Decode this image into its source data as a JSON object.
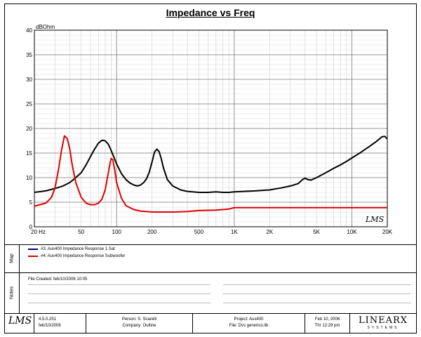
{
  "chart_data": {
    "type": "line",
    "title": "Impedance vs Freq",
    "ylabel": "dBOhm",
    "xlabel": "",
    "x_scale": "log",
    "xlim": [
      20,
      20000
    ],
    "ylim": [
      0,
      40
    ],
    "grid": true,
    "x_ticks": [
      "20 Hz",
      "50",
      "100",
      "200",
      "500",
      "1K",
      "2K",
      "5K",
      "10K",
      "20K"
    ],
    "x_tick_values": [
      20,
      50,
      100,
      200,
      500,
      1000,
      2000,
      5000,
      10000,
      20000
    ],
    "y_ticks": [
      "40",
      "35",
      "30",
      "25",
      "20",
      "15",
      "10",
      "5",
      "0"
    ],
    "y_tick_values": [
      40,
      35,
      30,
      25,
      20,
      15,
      10,
      5,
      0
    ],
    "series": [
      {
        "name": "#3: Aus400 Impedance Response 1 Sat",
        "color": "#000000",
        "points": [
          [
            20,
            7.0
          ],
          [
            25,
            7.3
          ],
          [
            30,
            7.8
          ],
          [
            35,
            8.3
          ],
          [
            40,
            9.0
          ],
          [
            45,
            10.0
          ],
          [
            50,
            11.0
          ],
          [
            55,
            12.6
          ],
          [
            60,
            14.3
          ],
          [
            65,
            15.8
          ],
          [
            70,
            17.0
          ],
          [
            75,
            17.6
          ],
          [
            80,
            17.5
          ],
          [
            85,
            16.8
          ],
          [
            90,
            15.5
          ],
          [
            100,
            12.8
          ],
          [
            110,
            10.8
          ],
          [
            120,
            9.6
          ],
          [
            130,
            8.9
          ],
          [
            140,
            8.5
          ],
          [
            150,
            8.3
          ],
          [
            160,
            8.5
          ],
          [
            170,
            9.0
          ],
          [
            180,
            9.8
          ],
          [
            190,
            11.2
          ],
          [
            200,
            13.2
          ],
          [
            210,
            15.2
          ],
          [
            220,
            15.8
          ],
          [
            230,
            15.3
          ],
          [
            240,
            13.8
          ],
          [
            250,
            12.0
          ],
          [
            270,
            9.6
          ],
          [
            300,
            8.3
          ],
          [
            350,
            7.5
          ],
          [
            400,
            7.2
          ],
          [
            500,
            7.0
          ],
          [
            600,
            7.0
          ],
          [
            700,
            7.1
          ],
          [
            800,
            7.0
          ],
          [
            900,
            7.0
          ],
          [
            1000,
            7.1
          ],
          [
            1200,
            7.2
          ],
          [
            1500,
            7.3
          ],
          [
            2000,
            7.5
          ],
          [
            2500,
            7.9
          ],
          [
            3000,
            8.3
          ],
          [
            3500,
            8.8
          ],
          [
            3800,
            9.6
          ],
          [
            4000,
            9.9
          ],
          [
            4200,
            9.6
          ],
          [
            4500,
            9.5
          ],
          [
            5000,
            10.0
          ],
          [
            6000,
            11.0
          ],
          [
            7000,
            11.9
          ],
          [
            8000,
            12.6
          ],
          [
            9000,
            13.3
          ],
          [
            10000,
            14.0
          ],
          [
            12000,
            15.2
          ],
          [
            14000,
            16.3
          ],
          [
            16000,
            17.3
          ],
          [
            18000,
            18.3
          ],
          [
            19000,
            18.4
          ],
          [
            20000,
            17.9
          ]
        ]
      },
      {
        "name": "#4: Aus400 Impedance Response Subwoofer",
        "color": "#e00000",
        "points": [
          [
            20,
            4.2
          ],
          [
            25,
            4.8
          ],
          [
            28,
            6.0
          ],
          [
            30,
            8.0
          ],
          [
            32,
            11.5
          ],
          [
            34,
            15.5
          ],
          [
            36,
            18.5
          ],
          [
            38,
            18.0
          ],
          [
            40,
            15.8
          ],
          [
            42,
            12.5
          ],
          [
            45,
            9.0
          ],
          [
            50,
            6.0
          ],
          [
            55,
            4.8
          ],
          [
            60,
            4.5
          ],
          [
            65,
            4.5
          ],
          [
            70,
            4.8
          ],
          [
            75,
            5.6
          ],
          [
            80,
            7.5
          ],
          [
            85,
            11.0
          ],
          [
            88,
            13.0
          ],
          [
            90,
            13.9
          ],
          [
            93,
            13.6
          ],
          [
            96,
            11.8
          ],
          [
            100,
            9.0
          ],
          [
            110,
            5.8
          ],
          [
            120,
            4.3
          ],
          [
            140,
            3.5
          ],
          [
            160,
            3.2
          ],
          [
            200,
            3.0
          ],
          [
            300,
            3.0
          ],
          [
            400,
            3.1
          ],
          [
            500,
            3.3
          ],
          [
            700,
            3.4
          ],
          [
            900,
            3.6
          ],
          [
            1000,
            3.9
          ],
          [
            2000,
            3.9
          ],
          [
            5000,
            3.9
          ],
          [
            10000,
            3.9
          ],
          [
            20000,
            3.9
          ]
        ]
      }
    ]
  },
  "legend": {
    "tab_label": "Map",
    "entries": [
      {
        "label": "#3: Aus400 Impedance Response 1 Sat",
        "color": "#000080"
      },
      {
        "label": "#4: Aus400 Impedance Response Subwoofer",
        "color": "#e00000"
      }
    ]
  },
  "notes": {
    "tab_label": "Notes",
    "text": "File Created: feb/10/2006 10:05"
  },
  "plot_logo": "LMS",
  "footer": {
    "logo": "LMS",
    "version": "4.5.0.251",
    "date_code": "feb/10/2006",
    "person": "Person: S. Scarelli",
    "company": "Company: Outline",
    "project": "Project: Aus400",
    "file": "File: Dvs generico.lib",
    "date": "Feb 10, 2006",
    "time": "Thr 12:29 pm",
    "brand": "LINEARX",
    "brand_sub": "SYSTEMS"
  }
}
